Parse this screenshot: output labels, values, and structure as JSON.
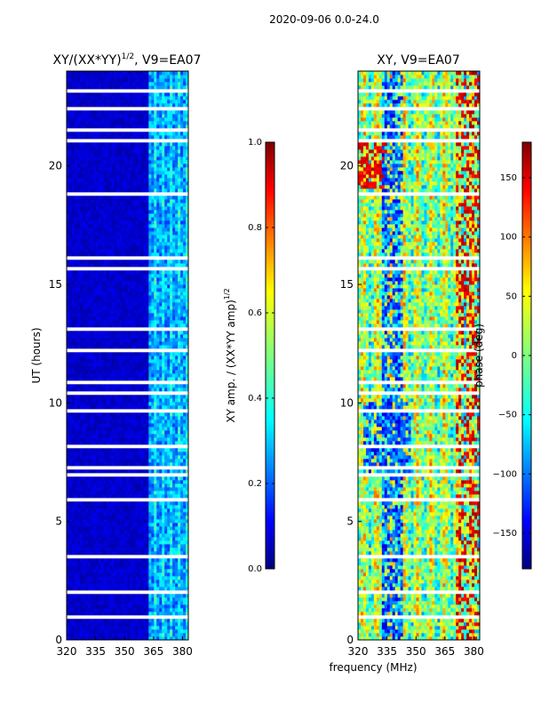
{
  "figure": {
    "suptitle": "2020-09-06 0.0-24.0",
    "xlabel_shared": "frequency (MHz)"
  },
  "chart_data": [
    {
      "type": "heatmap",
      "title_prefix": "XY/(XX*YY)",
      "title_sup": "1/2",
      "title_suffix": ", V9=EA07",
      "xlabel": "",
      "ylabel": "UT (hours)",
      "xlim": [
        320,
        383
      ],
      "ylim": [
        0,
        24
      ],
      "xticks": [
        320,
        335,
        350,
        365,
        380
      ],
      "yticks": [
        0,
        5,
        10,
        15,
        20
      ],
      "colormap": "jet",
      "colorbar": {
        "label": "XY amp. / (XX*YY amp)",
        "label_sup": "1/2",
        "ticks": [
          "0.0",
          "0.2",
          "0.4",
          "0.6",
          "0.8",
          "1.0"
        ],
        "tick_values": [
          0.0,
          0.2,
          0.4,
          0.6,
          0.8,
          1.0
        ],
        "range": [
          0,
          1
        ]
      },
      "bright_band_mhz": [
        363,
        383
      ],
      "gap_rows_hours": [
        0.9,
        1.9,
        3.4,
        5.9,
        6.9,
        7.2,
        8.1,
        9.6,
        10.3,
        10.8,
        12.2,
        13.1,
        15.6,
        16.1,
        18.7,
        21.0,
        21.5,
        22.4,
        23.1
      ]
    },
    {
      "type": "heatmap",
      "title_prefix": "XY, V9=EA07",
      "title_sup": "",
      "title_suffix": "",
      "xlabel": "frequency (MHz)",
      "ylabel": "",
      "xlim": [
        320,
        383
      ],
      "ylim": [
        0,
        24
      ],
      "xticks": [
        320,
        335,
        350,
        365,
        380
      ],
      "yticks": [
        0,
        5,
        10,
        15,
        20
      ],
      "colormap": "jet",
      "colorbar": {
        "label": "phase (deg)",
        "label_sup": "",
        "ticks": [
          "150",
          "100",
          "50",
          "0",
          "−50",
          "−100",
          "−150"
        ],
        "tick_values": [
          150,
          100,
          50,
          0,
          -50,
          -100,
          -150
        ],
        "range": [
          -180,
          180
        ]
      },
      "gap_rows_hours": [
        0.9,
        1.9,
        3.4,
        5.9,
        6.9,
        7.2,
        8.1,
        9.6,
        10.3,
        10.8,
        12.2,
        13.1,
        15.6,
        16.1,
        18.7,
        21.0,
        21.5,
        22.4,
        23.1
      ]
    }
  ]
}
